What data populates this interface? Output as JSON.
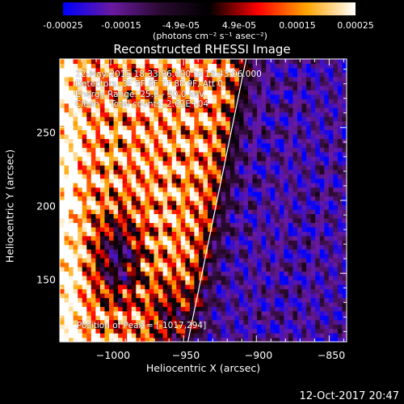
{
  "colorbar": {
    "ticks": [
      "-0.00025",
      "-0.00015",
      "-4.9e-05",
      "4.9e-05",
      "0.00015",
      "0.00025"
    ],
    "tick_values": [
      -0.00025,
      -0.00015,
      -4.9e-05,
      4.9e-05,
      0.00015,
      0.00025
    ],
    "range": [
      -0.00025,
      0.00025
    ],
    "unit_label": "(photons cm⁻² s⁻¹ asec⁻²)",
    "colors": [
      "#0000ff",
      "#6a1aa0",
      "#2a0a30",
      "#000000",
      "#ff0000",
      "#ffa500",
      "#ffffff"
    ]
  },
  "chart_data": {
    "type": "heatmap",
    "title": "Reconstructed RHESSI Image",
    "xlabel": "Heliocentric X (arcsec)",
    "ylabel": "Heliocentric Y (arcsec)",
    "xlim": [
      -1035,
      -838
    ],
    "ylim": [
      103,
      297
    ],
    "x_ticks": [
      -1000,
      -950,
      -900,
      -850
    ],
    "x_tick_labels": [
      "−1000",
      "−950",
      "−900",
      "−850"
    ],
    "y_ticks": [
      150,
      200,
      250
    ],
    "y_tick_labels": [
      "150",
      "200",
      "250"
    ],
    "limb_line": [
      [
        -947,
        103
      ],
      [
        -907,
        297
      ]
    ],
    "annotations": [
      "12-May-2015 18:33:06.000 to 18:43:06.000",
      "Detectors: 3F 5F 6F 7F 8F 9F, Att 0",
      "Energy Range: 25.0 - 50.0 keV",
      "Clean    Total counts: 2.62E+04"
    ],
    "peak_label": "Position of Peak = [-1017,294]"
  },
  "timestamp": "12-Oct-2017 20:47"
}
